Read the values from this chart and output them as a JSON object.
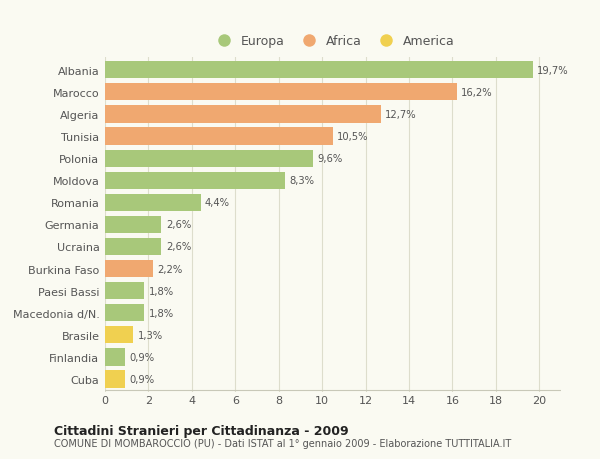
{
  "categories": [
    "Albania",
    "Marocco",
    "Algeria",
    "Tunisia",
    "Polonia",
    "Moldova",
    "Romania",
    "Germania",
    "Ucraina",
    "Burkina Faso",
    "Paesi Bassi",
    "Macedonia d/N.",
    "Brasile",
    "Finlandia",
    "Cuba"
  ],
  "values": [
    19.7,
    16.2,
    12.7,
    10.5,
    9.6,
    8.3,
    4.4,
    2.6,
    2.6,
    2.2,
    1.8,
    1.8,
    1.3,
    0.9,
    0.9
  ],
  "labels": [
    "19,7%",
    "16,2%",
    "12,7%",
    "10,5%",
    "9,6%",
    "8,3%",
    "4,4%",
    "2,6%",
    "2,6%",
    "2,2%",
    "1,8%",
    "1,8%",
    "1,3%",
    "0,9%",
    "0,9%"
  ],
  "colors": [
    "#a8c87a",
    "#f0a870",
    "#f0a870",
    "#f0a870",
    "#a8c87a",
    "#a8c87a",
    "#a8c87a",
    "#a8c87a",
    "#a8c87a",
    "#f0a870",
    "#a8c87a",
    "#a8c87a",
    "#f0d050",
    "#a8c87a",
    "#f0d050"
  ],
  "legend_labels": [
    "Europa",
    "Africa",
    "America"
  ],
  "legend_colors": [
    "#a8c87a",
    "#f0a870",
    "#f0d050"
  ],
  "title1": "Cittadini Stranieri per Cittadinanza - 2009",
  "title2": "COMUNE DI MOMBAROCCIO (PU) - Dati ISTAT al 1° gennaio 2009 - Elaborazione TUTTITALIA.IT",
  "xlim": [
    0,
    21
  ],
  "xticks": [
    0,
    2,
    4,
    6,
    8,
    10,
    12,
    14,
    16,
    18,
    20
  ],
  "background_color": "#fafaf2",
  "grid_color": "#ddddcc",
  "bar_height": 0.78
}
